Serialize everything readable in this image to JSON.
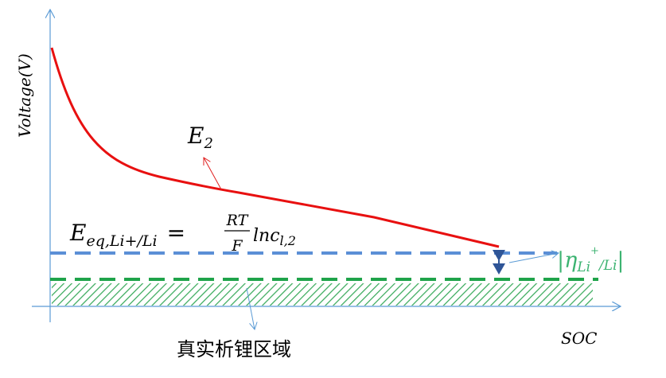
{
  "axes": {
    "y_label": "Voltage(V)",
    "x_label": "SOC"
  },
  "curve_label": {
    "main": "E",
    "sub": "2"
  },
  "equation": {
    "lhs": "E",
    "lhs_sub": "eq,Li+/Li",
    "equals": "=",
    "numerator": "RT",
    "denominator": "F",
    "rhs": "lnc",
    "rhs_sub": "l,2"
  },
  "overpotential": {
    "open": "|η",
    "sub": "Li",
    "sup": "+",
    "slash": "/Li",
    "close": "|"
  },
  "region_label": "真实析锂区域"
}
